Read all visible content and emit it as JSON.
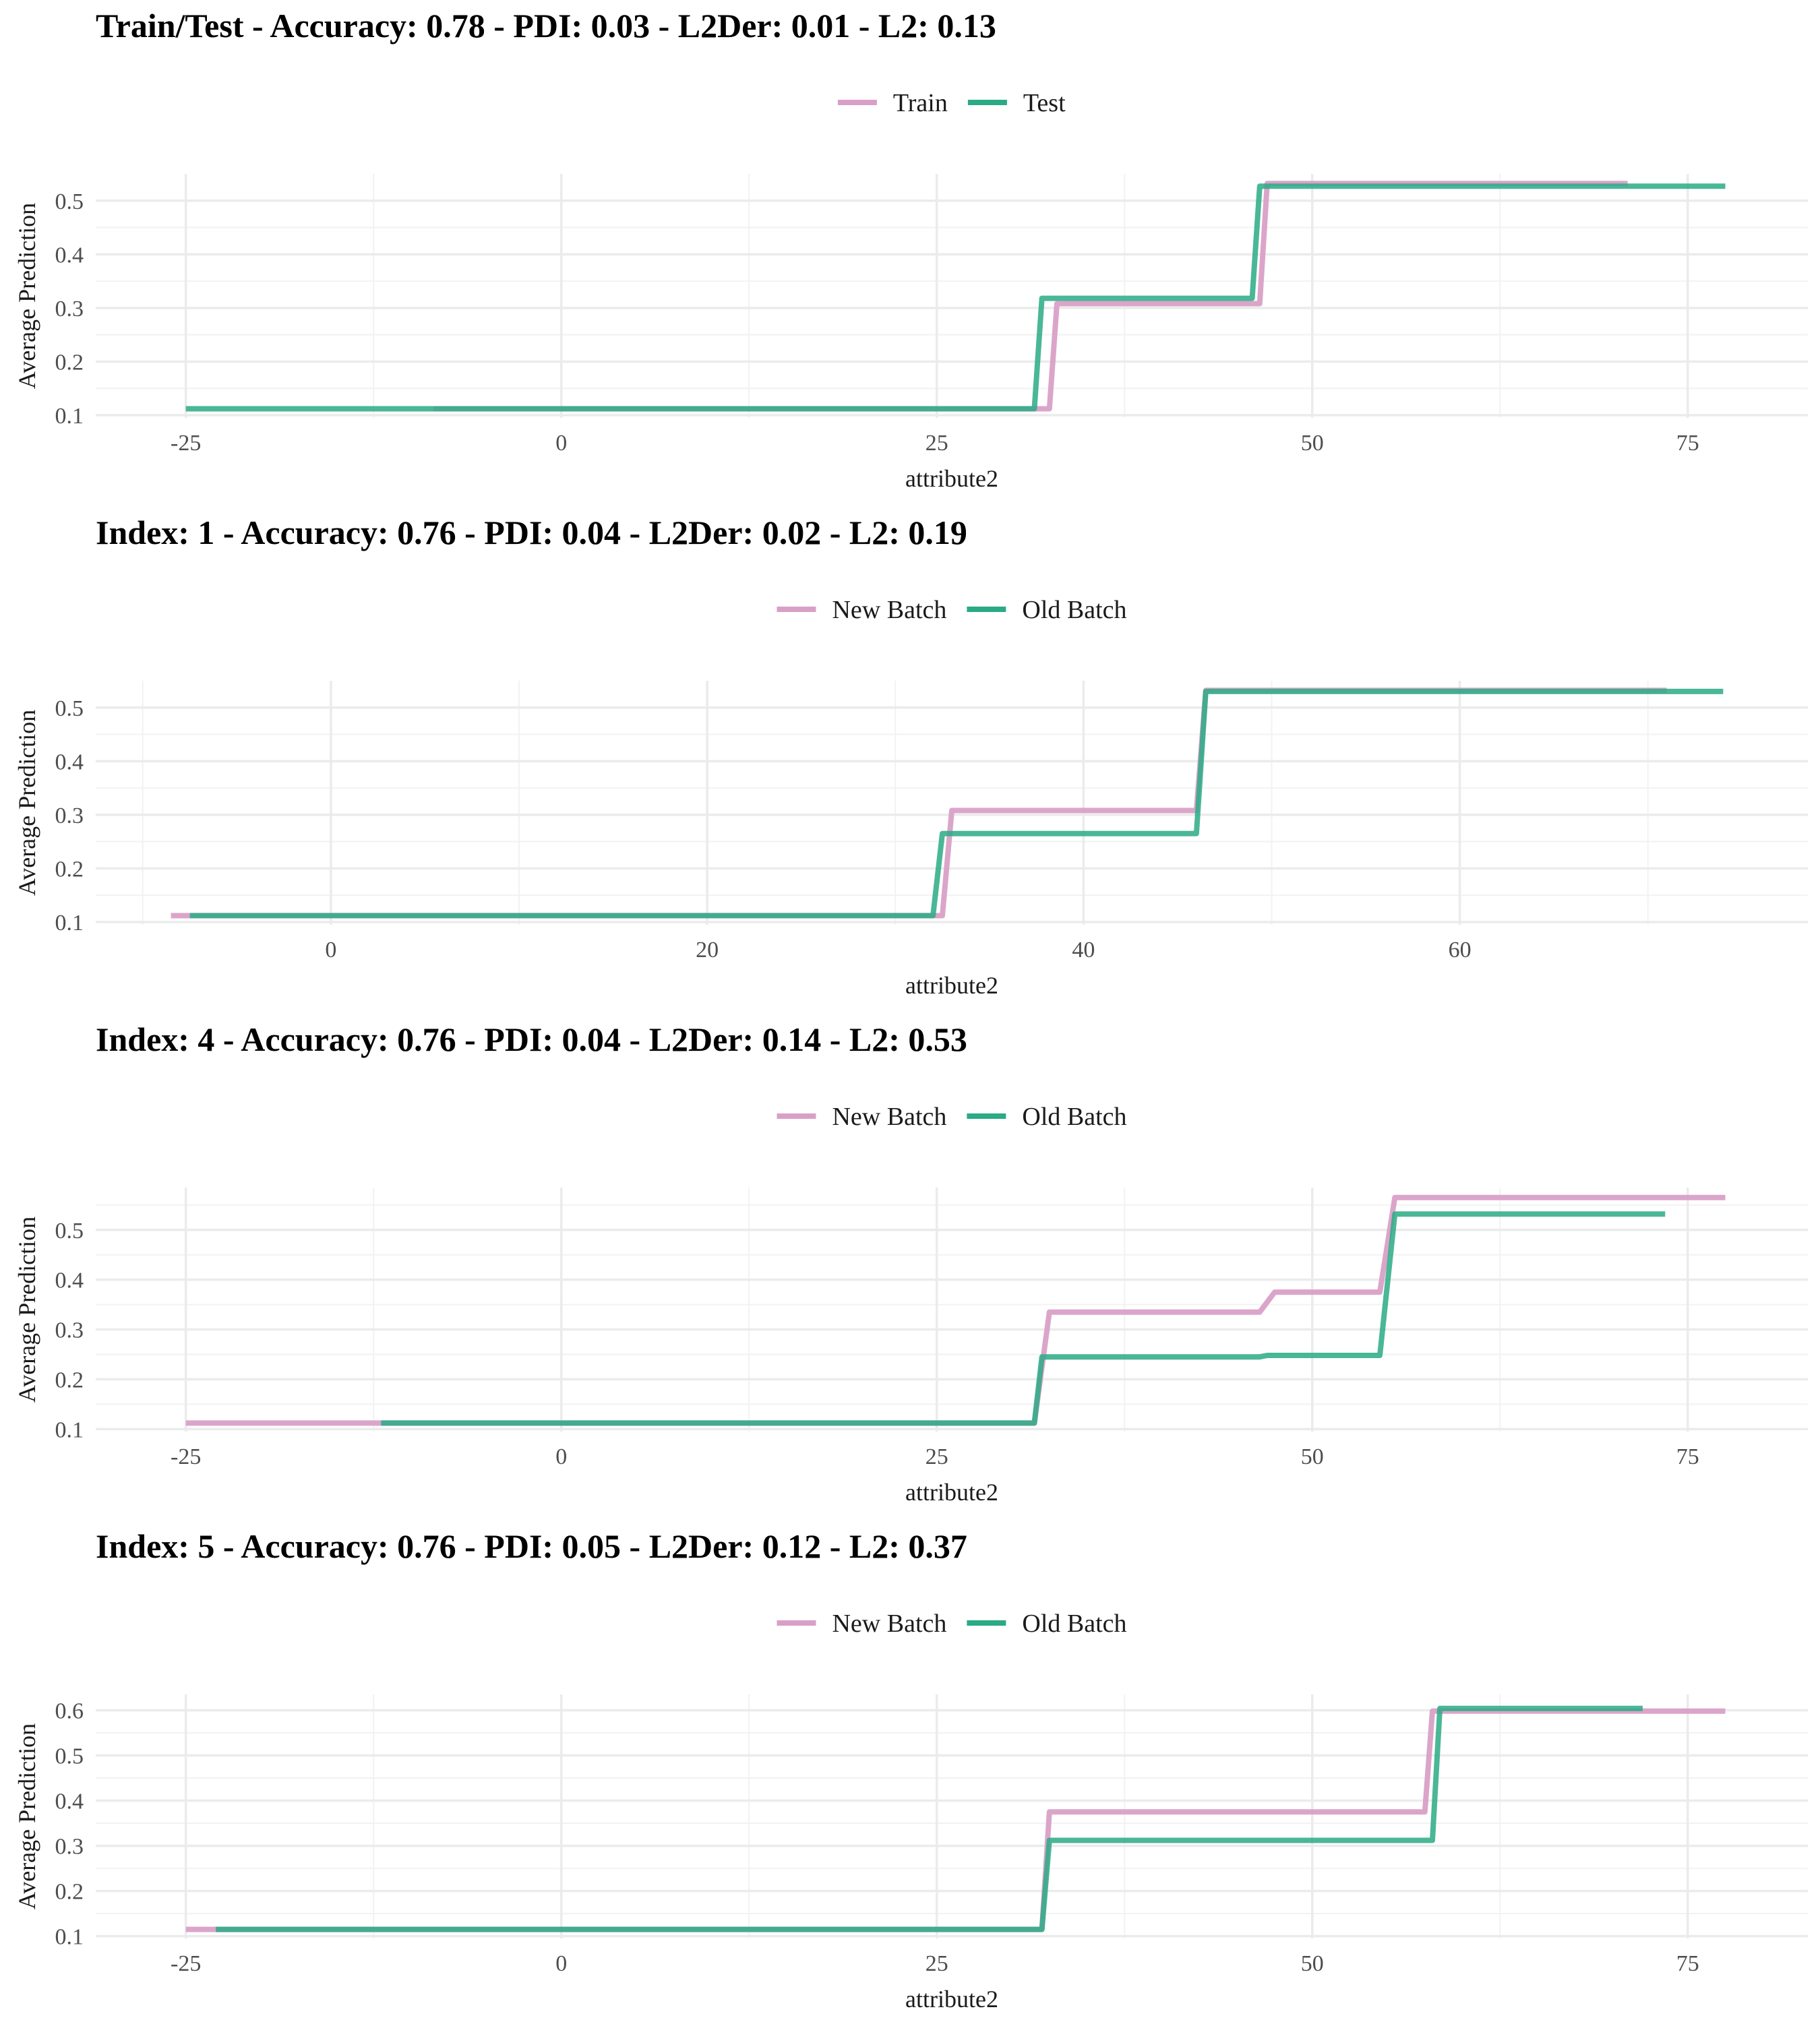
{
  "colors": {
    "pink": "#d9a0c7",
    "green": "#2aaa85"
  },
  "chart_data": [
    {
      "type": "line",
      "title": "Train/Test - Accuracy: 0.78 - PDI: 0.03 - L2Der: 0.01 - L2: 0.13",
      "xlabel": "attribute2",
      "ylabel": "Average Prediction",
      "xlim": [
        -31,
        83
      ],
      "ylim": [
        0.095,
        0.55
      ],
      "xticks": [
        -25,
        0,
        25,
        50,
        75
      ],
      "xtick_labels": [
        "-25",
        "0",
        "25",
        "50",
        "75"
      ],
      "yticks": [
        0.1,
        0.2,
        0.3,
        0.4,
        0.5
      ],
      "ytick_labels": [
        "0.1",
        "0.2",
        "0.3",
        "0.4",
        "0.5"
      ],
      "legend": "top-center",
      "series": [
        {
          "name": "Train",
          "color": "#d9a0c7",
          "x": [
            -8.5,
            32.5,
            33.0,
            46.5,
            47.0,
            71.0
          ],
          "y": [
            0.112,
            0.112,
            0.308,
            0.308,
            0.532,
            0.532
          ]
        },
        {
          "name": "Test",
          "color": "#2aaa85",
          "x": [
            -25.0,
            31.5,
            32.0,
            46.0,
            46.5,
            77.5
          ],
          "y": [
            0.112,
            0.112,
            0.318,
            0.318,
            0.527,
            0.527
          ]
        }
      ]
    },
    {
      "type": "line",
      "title": "Index: 1 - Accuracy: 0.76 - PDI: 0.04 - L2Der: 0.02 - L2: 0.19",
      "xlabel": "attribute2",
      "ylabel": "Average Prediction",
      "xlim": [
        -12.5,
        78.5
      ],
      "ylim": [
        0.095,
        0.55
      ],
      "xticks": [
        0,
        20,
        40,
        60
      ],
      "xtick_labels": [
        "0",
        "20",
        "40",
        "60"
      ],
      "yticks": [
        0.1,
        0.2,
        0.3,
        0.4,
        0.5
      ],
      "ytick_labels": [
        "0.1",
        "0.2",
        "0.3",
        "0.4",
        "0.5"
      ],
      "legend": "top-center",
      "series": [
        {
          "name": "New Batch",
          "color": "#d9a0c7",
          "x": [
            -8.5,
            32.5,
            33.0,
            46.0,
            46.5,
            71.0
          ],
          "y": [
            0.112,
            0.112,
            0.308,
            0.308,
            0.532,
            0.532
          ]
        },
        {
          "name": "Old Batch",
          "color": "#2aaa85",
          "x": [
            -7.5,
            32.0,
            32.5,
            46.0,
            46.5,
            74.0
          ],
          "y": [
            0.112,
            0.112,
            0.265,
            0.265,
            0.53,
            0.53
          ]
        }
      ]
    },
    {
      "type": "line",
      "title": "Index: 4 - Accuracy: 0.76 - PDI: 0.04 - L2Der: 0.14 - L2: 0.53",
      "xlabel": "attribute2",
      "ylabel": "Average Prediction",
      "xlim": [
        -31,
        83
      ],
      "ylim": [
        0.095,
        0.585
      ],
      "xticks": [
        -25,
        0,
        25,
        50,
        75
      ],
      "xtick_labels": [
        "-25",
        "0",
        "25",
        "50",
        "75"
      ],
      "yticks": [
        0.1,
        0.2,
        0.3,
        0.4,
        0.5
      ],
      "ytick_labels": [
        "0.1",
        "0.2",
        "0.3",
        "0.4",
        "0.5"
      ],
      "legend": "top-center",
      "series": [
        {
          "name": "New Batch",
          "color": "#d9a0c7",
          "x": [
            -25.0,
            31.5,
            32.5,
            46.5,
            47.5,
            54.5,
            55.5,
            77.5
          ],
          "y": [
            0.112,
            0.112,
            0.335,
            0.335,
            0.375,
            0.375,
            0.565,
            0.565
          ]
        },
        {
          "name": "Old Batch",
          "color": "#2aaa85",
          "x": [
            -12.0,
            31.5,
            32.0,
            46.5,
            47.0,
            54.5,
            55.5,
            73.5
          ],
          "y": [
            0.112,
            0.112,
            0.245,
            0.245,
            0.248,
            0.248,
            0.532,
            0.532
          ]
        }
      ]
    },
    {
      "type": "line",
      "title": "Index: 5 - Accuracy: 0.76 - PDI: 0.05 - L2Der: 0.12 - L2: 0.37",
      "xlabel": "attribute2",
      "ylabel": "Average Prediction",
      "xlim": [
        -31,
        83
      ],
      "ylim": [
        0.095,
        0.635
      ],
      "xticks": [
        -25,
        0,
        25,
        50,
        75
      ],
      "xtick_labels": [
        "-25",
        "0",
        "25",
        "50",
        "75"
      ],
      "yticks": [
        0.1,
        0.2,
        0.3,
        0.4,
        0.5,
        0.6
      ],
      "ytick_labels": [
        "0.1",
        "0.2",
        "0.3",
        "0.4",
        "0.5",
        "0.6"
      ],
      "legend": "top-center",
      "series": [
        {
          "name": "New Batch",
          "color": "#d9a0c7",
          "x": [
            -25.0,
            32.0,
            32.5,
            57.5,
            58.0,
            77.5
          ],
          "y": [
            0.115,
            0.115,
            0.375,
            0.375,
            0.598,
            0.598
          ]
        },
        {
          "name": "Old Batch",
          "color": "#2aaa85",
          "x": [
            -23.0,
            32.0,
            32.5,
            58.0,
            58.5,
            72.0
          ],
          "y": [
            0.115,
            0.115,
            0.312,
            0.312,
            0.604,
            0.604
          ]
        }
      ]
    }
  ]
}
